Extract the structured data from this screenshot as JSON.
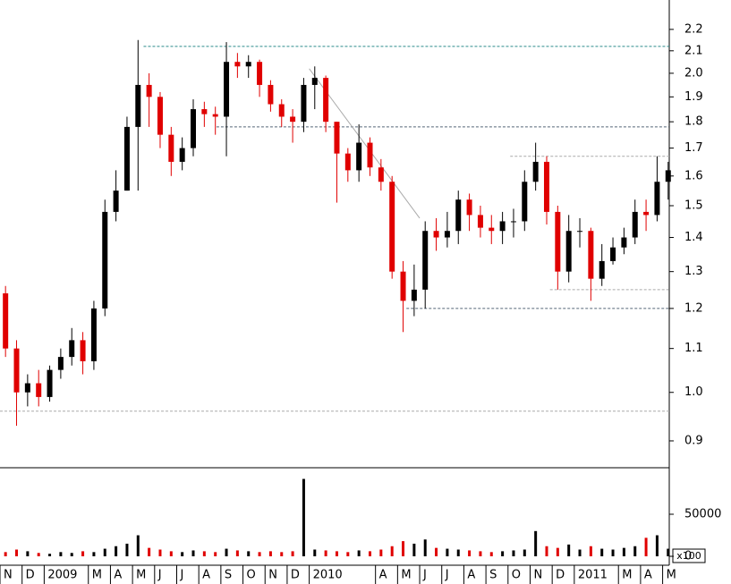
{
  "chart_data": [
    {
      "type": "candlestick",
      "log_scale": true,
      "grid": false,
      "up_color": "#000000",
      "down_color": "#e00000",
      "xlim": [
        0,
        30.3
      ],
      "ylim": [
        0.849,
        2.345
      ],
      "xticks": [
        {
          "value": 0,
          "label": "N"
        },
        {
          "value": 1,
          "label": "D"
        },
        {
          "value": 2,
          "label": "2009"
        },
        {
          "value": 4,
          "label": "M"
        },
        {
          "value": 5,
          "label": "A"
        },
        {
          "value": 6,
          "label": "M"
        },
        {
          "value": 7,
          "label": "J"
        },
        {
          "value": 8,
          "label": "J"
        },
        {
          "value": 9,
          "label": "A"
        },
        {
          "value": 10,
          "label": "S"
        },
        {
          "value": 11,
          "label": "O"
        },
        {
          "value": 12,
          "label": "N"
        },
        {
          "value": 13,
          "label": "D"
        },
        {
          "value": 14,
          "label": "2010"
        },
        {
          "value": 17,
          "label": "A"
        },
        {
          "value": 18,
          "label": "M"
        },
        {
          "value": 19,
          "label": "J"
        },
        {
          "value": 20,
          "label": "J"
        },
        {
          "value": 21,
          "label": "A"
        },
        {
          "value": 22,
          "label": "S"
        },
        {
          "value": 23,
          "label": "O"
        },
        {
          "value": 24,
          "label": "N"
        },
        {
          "value": 25,
          "label": "D"
        },
        {
          "value": 26,
          "label": "2011"
        },
        {
          "value": 28,
          "label": "M"
        },
        {
          "value": 29,
          "label": "A"
        },
        {
          "value": 30,
          "label": "M"
        }
      ],
      "yticks": [
        0.9,
        {
          "value": 1,
          "label": "1.0"
        },
        1.1,
        1.2,
        1.3,
        1.4,
        1.5,
        1.6,
        1.7,
        1.8,
        1.9,
        {
          "value": 2,
          "label": "2.0"
        },
        2.1,
        2.2
      ],
      "x": [
        0.25,
        0.75,
        1.25,
        1.75,
        2.25,
        2.75,
        3.25,
        3.75,
        4.25,
        4.75,
        5.25,
        5.75,
        6.25,
        6.75,
        7.25,
        7.75,
        8.25,
        8.75,
        9.25,
        9.75,
        10.25,
        10.75,
        11.25,
        11.75,
        12.25,
        12.75,
        13.25,
        13.75,
        14.25,
        14.75,
        15.25,
        15.75,
        16.25,
        16.75,
        17.25,
        17.75,
        18.25,
        18.75,
        19.25,
        19.75,
        20.25,
        20.75,
        21.25,
        21.75,
        22.25,
        22.75,
        23.25,
        23.75,
        24.25,
        24.75,
        25.25,
        25.75,
        26.25,
        26.75,
        27.25,
        27.75,
        28.25,
        28.75,
        29.25,
        29.75,
        30.25
      ],
      "open": [
        1.24,
        1.1,
        1.0,
        1.02,
        0.99,
        1.05,
        1.08,
        1.12,
        1.07,
        1.2,
        1.48,
        1.55,
        1.78,
        1.95,
        1.9,
        1.75,
        1.65,
        1.7,
        1.85,
        1.83,
        1.82,
        2.05,
        2.03,
        2.05,
        1.95,
        1.87,
        1.82,
        1.8,
        1.95,
        1.98,
        1.8,
        1.68,
        1.62,
        1.72,
        1.63,
        1.58,
        1.3,
        1.22,
        1.25,
        1.42,
        1.4,
        1.42,
        1.52,
        1.47,
        1.43,
        1.42,
        1.45,
        1.45,
        1.58,
        1.65,
        1.48,
        1.3,
        1.42,
        1.42,
        1.28,
        1.33,
        1.37,
        1.4,
        1.48,
        1.47,
        1.58
      ],
      "high": [
        1.26,
        1.12,
        1.04,
        1.05,
        1.06,
        1.1,
        1.15,
        1.14,
        1.22,
        1.52,
        1.62,
        1.82,
        2.15,
        2.0,
        1.92,
        1.78,
        1.74,
        1.89,
        1.88,
        1.86,
        2.14,
        2.09,
        2.08,
        2.06,
        1.97,
        1.89,
        1.85,
        1.98,
        2.03,
        1.99,
        1.8,
        1.7,
        1.79,
        1.74,
        1.66,
        1.6,
        1.33,
        1.32,
        1.45,
        1.46,
        1.48,
        1.55,
        1.54,
        1.5,
        1.47,
        1.48,
        1.49,
        1.62,
        1.72,
        1.67,
        1.5,
        1.47,
        1.46,
        1.43,
        1.38,
        1.4,
        1.43,
        1.52,
        1.52,
        1.67,
        1.65
      ],
      "low": [
        1.08,
        0.93,
        0.97,
        0.97,
        0.98,
        1.03,
        1.06,
        1.04,
        1.05,
        1.18,
        1.45,
        1.55,
        1.55,
        1.78,
        1.7,
        1.6,
        1.62,
        1.67,
        1.78,
        1.75,
        1.67,
        1.98,
        1.98,
        1.9,
        1.84,
        1.78,
        1.72,
        1.76,
        1.85,
        1.76,
        1.51,
        1.58,
        1.58,
        1.6,
        1.55,
        1.28,
        1.14,
        1.18,
        1.2,
        1.36,
        1.37,
        1.38,
        1.42,
        1.4,
        1.38,
        1.38,
        1.4,
        1.42,
        1.55,
        1.44,
        1.25,
        1.27,
        1.37,
        1.22,
        1.26,
        1.32,
        1.35,
        1.38,
        1.42,
        1.45,
        1.52
      ],
      "close": [
        1.1,
        1.0,
        1.02,
        0.99,
        1.05,
        1.08,
        1.12,
        1.07,
        1.2,
        1.48,
        1.55,
        1.78,
        1.95,
        1.9,
        1.75,
        1.65,
        1.7,
        1.85,
        1.83,
        1.82,
        2.05,
        2.03,
        2.05,
        1.95,
        1.87,
        1.82,
        1.8,
        1.95,
        1.98,
        1.8,
        1.68,
        1.62,
        1.72,
        1.63,
        1.58,
        1.3,
        1.22,
        1.25,
        1.42,
        1.4,
        1.42,
        1.52,
        1.47,
        1.43,
        1.42,
        1.45,
        1.45,
        1.58,
        1.65,
        1.48,
        1.3,
        1.42,
        1.42,
        1.28,
        1.33,
        1.37,
        1.4,
        1.48,
        1.47,
        1.58,
        1.62
      ],
      "hlines": [
        {
          "value": 2.12,
          "from": 6.5,
          "color": "#2a8a8a"
        },
        {
          "value": 1.78,
          "from": 9.8,
          "color": "#556677"
        },
        {
          "value": 1.67,
          "from": 23.1,
          "color": "#aaaaaa"
        },
        {
          "value": 1.25,
          "from": 24.9,
          "color": "#aaaaaa"
        },
        {
          "value": 1.2,
          "from": 18.4,
          "color": "#556677"
        },
        {
          "value": 0.96,
          "from": 0,
          "color": "#aaaaaa"
        }
      ],
      "trendline": {
        "x": [
          14,
          19
        ],
        "y": [
          2.02,
          1.46
        ],
        "color": "#aaaaaa"
      }
    },
    {
      "type": "volume",
      "unit_label": "x100",
      "xlim": [
        0,
        30.3
      ],
      "ylim": [
        -10600,
        105300
      ],
      "yticks": [
        0,
        50000
      ],
      "x": [
        0.25,
        0.75,
        1.25,
        1.75,
        2.25,
        2.75,
        3.25,
        3.75,
        4.25,
        4.75,
        5.25,
        5.75,
        6.25,
        6.75,
        7.25,
        7.75,
        8.25,
        8.75,
        9.25,
        9.75,
        10.25,
        10.75,
        11.25,
        11.75,
        12.25,
        12.75,
        13.25,
        13.75,
        14.25,
        14.75,
        15.25,
        15.75,
        16.25,
        16.75,
        17.25,
        17.75,
        18.25,
        18.75,
        19.25,
        19.75,
        20.25,
        20.75,
        21.25,
        21.75,
        22.25,
        22.75,
        23.25,
        23.75,
        24.25,
        24.75,
        25.25,
        25.75,
        26.25,
        26.75,
        27.25,
        27.75,
        28.25,
        28.75,
        29.25,
        29.75,
        30.25
      ],
      "values": [
        5000,
        8000,
        6000,
        4000,
        3000,
        5000,
        4000,
        6000,
        5000,
        9000,
        12000,
        15000,
        25000,
        10000,
        8000,
        6000,
        5000,
        7000,
        6000,
        5000,
        9000,
        7000,
        6000,
        5000,
        6000,
        5000,
        6000,
        92000,
        8000,
        7000,
        6000,
        5000,
        7000,
        6000,
        8000,
        12000,
        18000,
        15000,
        20000,
        10000,
        9000,
        8000,
        7000,
        6000,
        5000,
        6000,
        7000,
        8000,
        30000,
        12000,
        10000,
        14000,
        8000,
        12000,
        9000,
        8000,
        10000,
        12000,
        22000,
        25000,
        9000
      ]
    }
  ]
}
